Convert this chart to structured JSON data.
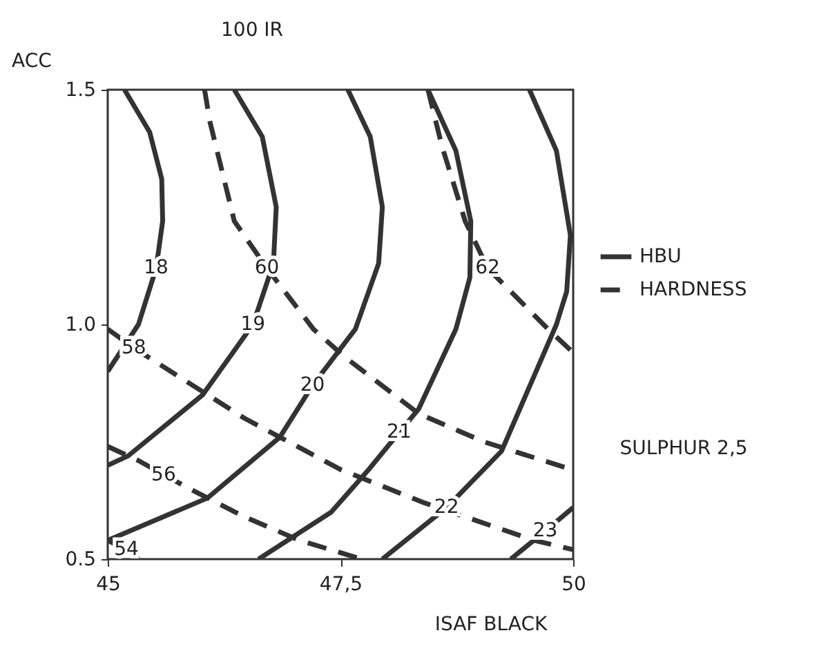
{
  "chart_data": {
    "type": "line",
    "title": "100 IR",
    "xlabel": "ISAF BLACK",
    "ylabel": "ACC",
    "xlim": [
      45,
      50
    ],
    "ylim": [
      0.5,
      1.5
    ],
    "xticks": [
      45,
      {
        "value": 47.5,
        "label": "47,5"
      },
      50
    ],
    "yticks": [
      {
        "value": 0.5,
        "label": "0.5"
      },
      {
        "value": 1,
        "label": "1.0"
      },
      {
        "value": 1.5,
        "label": "1.5"
      }
    ],
    "legend": "right",
    "grid": false,
    "marker": "none",
    "series": [
      {
        "name": "HBU",
        "color": "#333333",
        "line_style": "solid",
        "x": [
          45.18,
          45.45,
          45.58,
          45.59,
          45.52,
          45.33,
          45.0
        ],
        "values": [
          1.5,
          1.41,
          1.31,
          1.22,
          1.12,
          1.0,
          0.9
        ]
      },
      {
        "color": "#333333",
        "line_style": "solid",
        "x": [
          46.36,
          46.66,
          46.81,
          46.78,
          46.56,
          46.02,
          45.22,
          45.0
        ],
        "values": [
          1.5,
          1.4,
          1.25,
          1.13,
          1.0,
          0.85,
          0.72,
          0.7
        ]
      },
      {
        "color": "#333333",
        "line_style": "solid",
        "x": [
          47.58,
          47.82,
          47.95,
          47.91,
          47.66,
          47.2,
          46.85,
          46.07,
          45.0
        ],
        "values": [
          1.5,
          1.4,
          1.25,
          1.13,
          0.99,
          0.87,
          0.76,
          0.63,
          0.54
        ]
      },
      {
        "color": "#333333",
        "line_style": "solid",
        "x": [
          48.44,
          48.74,
          48.9,
          48.89,
          48.74,
          48.34,
          48.13,
          47.8,
          47.4,
          46.62
        ],
        "values": [
          1.5,
          1.37,
          1.22,
          1.1,
          0.99,
          0.82,
          0.77,
          0.69,
          0.6,
          0.5
        ]
      },
      {
        "color": "#333333",
        "line_style": "solid",
        "x": [
          49.53,
          49.82,
          49.97,
          49.93,
          49.82,
          49.23,
          48.64,
          47.95
        ],
        "values": [
          1.5,
          1.37,
          1.19,
          1.07,
          1.0,
          0.73,
          0.61,
          0.5
        ]
      },
      {
        "color": "#333333",
        "line_style": "solid",
        "x": [
          50.0,
          49.7,
          49.33
        ],
        "values": [
          0.61,
          0.56,
          0.5
        ]
      },
      {
        "name": "HARDNESS",
        "color": "#333333",
        "line_style": "dashed",
        "x": [
          45.0,
          45.2,
          45.33
        ],
        "values": [
          0.54,
          0.52,
          0.5
        ]
      },
      {
        "color": "#333333",
        "line_style": "dashed",
        "x": [
          45.0,
          45.33,
          45.6,
          45.88,
          46.47,
          47.06,
          47.73
        ],
        "values": [
          0.74,
          0.71,
          0.68,
          0.65,
          0.59,
          0.54,
          0.5
        ]
      },
      {
        "color": "#333333",
        "line_style": "dashed",
        "x": [
          45.0,
          45.28,
          46.47,
          47.51,
          48.4,
          49.58,
          50.0
        ],
        "values": [
          0.99,
          0.95,
          0.8,
          0.69,
          0.62,
          0.54,
          0.52
        ]
      },
      {
        "color": "#333333",
        "line_style": "dashed",
        "x": [
          46.04,
          46.1,
          46.36,
          46.71,
          47.21,
          47.55,
          48.34,
          49.04,
          50.0
        ],
        "values": [
          1.5,
          1.43,
          1.22,
          1.12,
          0.99,
          0.93,
          0.81,
          0.75,
          0.69
        ]
      },
      {
        "color": "#333333",
        "line_style": "dashed",
        "x": [
          48.44,
          48.59,
          48.84,
          49.08,
          49.73,
          50.0
        ],
        "values": [
          1.5,
          1.38,
          1.22,
          1.12,
          0.99,
          0.94
        ]
      }
    ],
    "annotations": [
      {
        "text": "18",
        "x": 45.52,
        "y": 1.12
      },
      {
        "text": "19",
        "x": 46.56,
        "y": 1.0
      },
      {
        "text": "60",
        "x": 46.71,
        "y": 1.12
      },
      {
        "text": "62",
        "x": 49.08,
        "y": 1.12
      },
      {
        "text": "58",
        "x": 45.28,
        "y": 0.95
      },
      {
        "text": "20",
        "x": 47.2,
        "y": 0.87
      },
      {
        "text": "21",
        "x": 48.13,
        "y": 0.77
      },
      {
        "text": "56",
        "x": 45.6,
        "y": 0.68
      },
      {
        "text": "22",
        "x": 48.64,
        "y": 0.61
      },
      {
        "text": "23",
        "x": 49.7,
        "y": 0.56
      },
      {
        "text": "54",
        "x": 45.2,
        "y": 0.52
      },
      "SULPHUR 2,5"
    ]
  }
}
